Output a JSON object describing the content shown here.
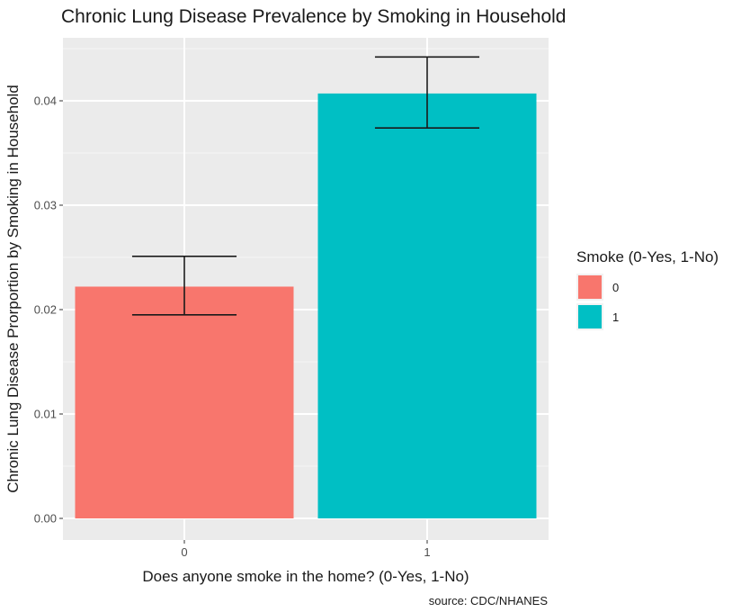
{
  "chart_data": {
    "type": "bar",
    "title": "Chronic Lung Disease Prevalence by Smoking in Household",
    "xlabel": "Does anyone smoke in the home? (0-Yes, 1-No)",
    "ylabel": "Chronic Lung Disease Prorportion by Smoking in Household",
    "caption": "source: CDC/NHANES",
    "categories": [
      "0",
      "1"
    ],
    "values": [
      0.0222,
      0.0407
    ],
    "error_low": [
      0.0195,
      0.0374
    ],
    "error_high": [
      0.0251,
      0.0442
    ],
    "ylim": [
      0,
      0.0465
    ],
    "yticks": [
      0,
      0.01,
      0.02,
      0.03,
      0.04
    ],
    "ytick_labels": [
      "0.00",
      "0.01",
      "0.02",
      "0.03",
      "0.04"
    ],
    "grid": true,
    "legend": {
      "title": "Smoke (0-Yes, 1-No)",
      "position": "right",
      "entries": [
        {
          "label": "0",
          "color": "#F8766D"
        },
        {
          "label": "1",
          "color": "#00BFC4"
        }
      ]
    },
    "colors": [
      "#F8766D",
      "#00BFC4"
    ]
  }
}
